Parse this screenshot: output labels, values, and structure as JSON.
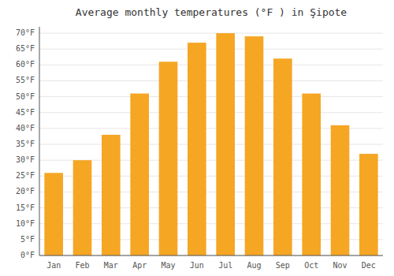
{
  "chart_data": {
    "type": "bar",
    "title": "Average monthly temperatures (°F ) in Şipote",
    "categories": [
      "Jan",
      "Feb",
      "Mar",
      "Apr",
      "May",
      "Jun",
      "Jul",
      "Aug",
      "Sep",
      "Oct",
      "Nov",
      "Dec"
    ],
    "values": [
      26,
      30,
      38,
      51,
      61,
      67,
      70,
      69,
      62,
      51,
      41,
      32
    ],
    "color": "#F5A623",
    "ylim": [
      0,
      72
    ],
    "yticks": [
      {
        "value": 0,
        "label": "0°F"
      },
      {
        "value": 5,
        "label": "5°F"
      },
      {
        "value": 10,
        "label": "10°F"
      },
      {
        "value": 15,
        "label": "15°F"
      },
      {
        "value": 20,
        "label": "20°F"
      },
      {
        "value": 25,
        "label": "25°F"
      },
      {
        "value": 30,
        "label": "30°F"
      },
      {
        "value": 35,
        "label": "35°F"
      },
      {
        "value": 40,
        "label": "40°F"
      },
      {
        "value": 45,
        "label": "45°F"
      },
      {
        "value": 50,
        "label": "50°F"
      },
      {
        "value": 55,
        "label": "55°F"
      },
      {
        "value": 60,
        "label": "60°F"
      },
      {
        "value": 65,
        "label": "65°F"
      },
      {
        "value": 70,
        "label": "70°F"
      }
    ],
    "grid": true
  }
}
